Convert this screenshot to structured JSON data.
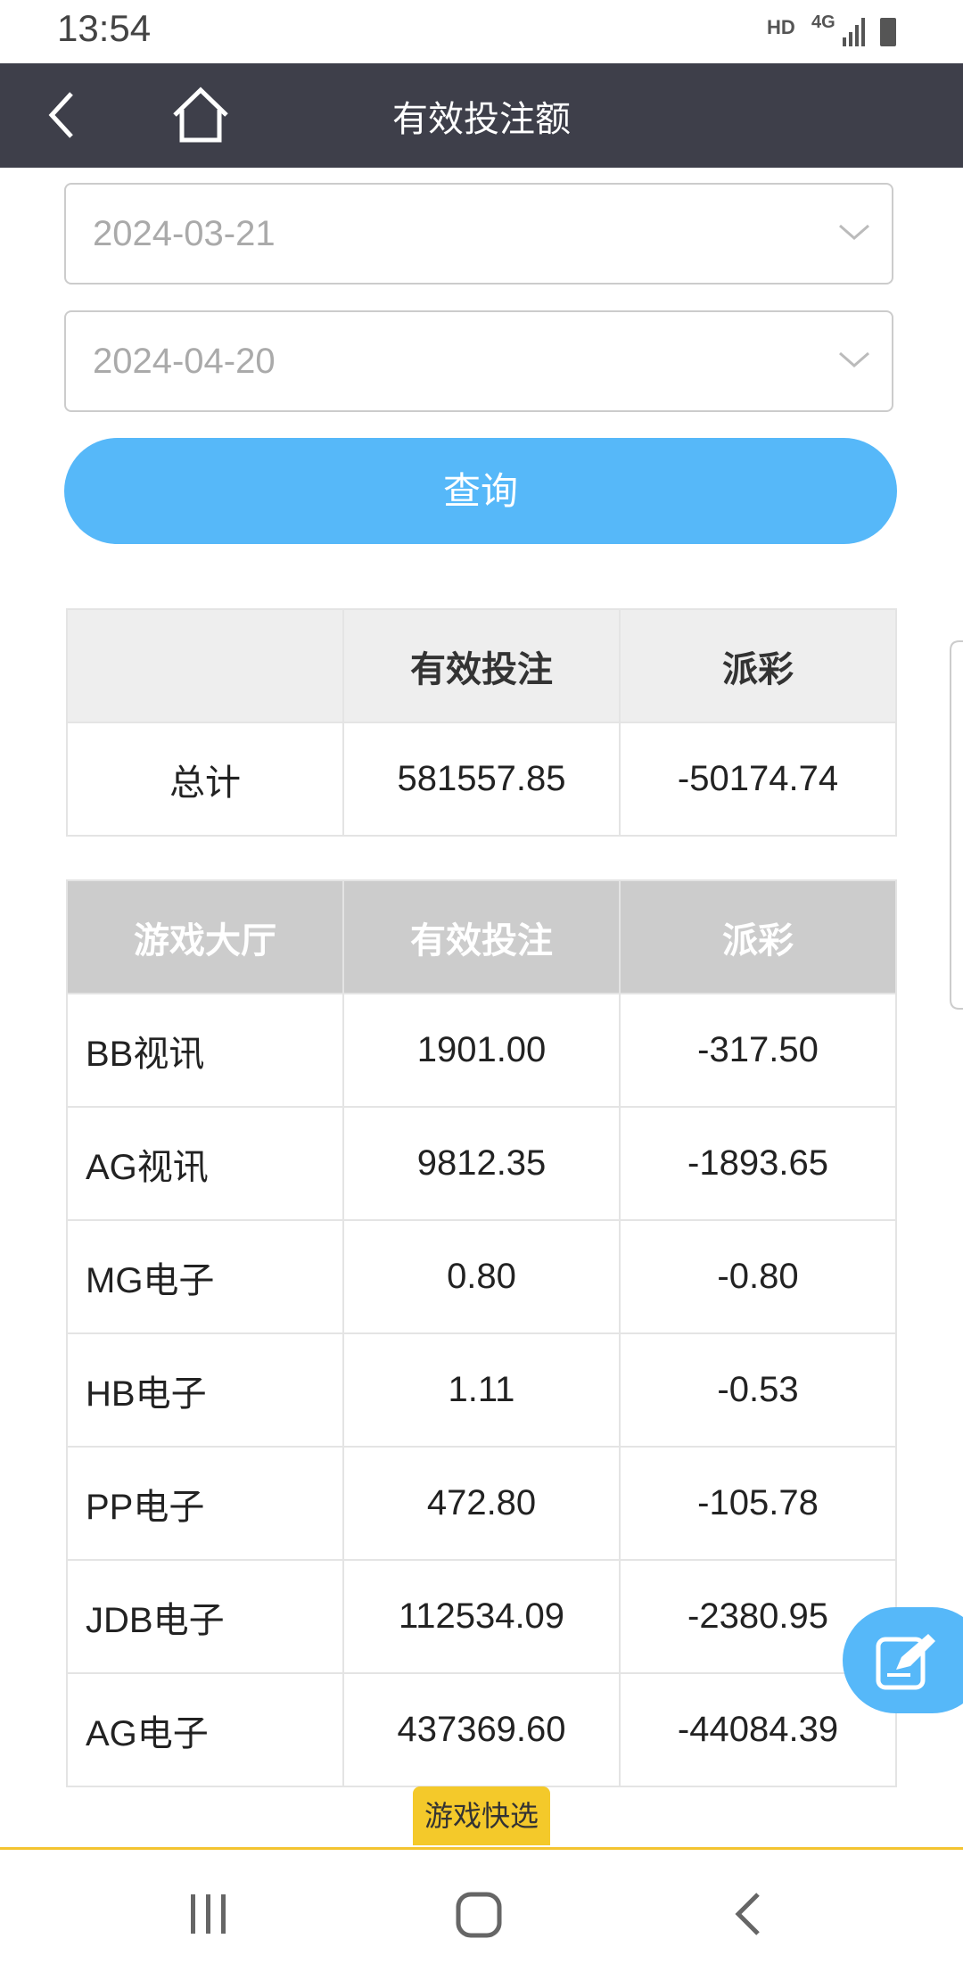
{
  "status_bar": {
    "time": "13:54",
    "network": "HD",
    "signal": "4G"
  },
  "header": {
    "title": "有效投注额"
  },
  "form": {
    "start_date": "2024-03-21",
    "end_date": "2024-04-20",
    "button": "查询"
  },
  "summary_table": {
    "columns": [
      "有效投注",
      "派彩"
    ],
    "rows": [
      [
        "总计",
        "581557.85",
        "-50174.74"
      ]
    ]
  },
  "detail_table": {
    "columns": [
      "游戏大厅",
      "有效投注",
      "派彩"
    ],
    "rows": [
      [
        "BB视讯",
        "1901.00",
        "-317.50"
      ],
      [
        "AG视讯",
        "9812.35",
        "-1893.65"
      ],
      [
        "MG电子",
        "0.80",
        "-0.80"
      ],
      [
        "HB电子",
        "1.11",
        "-0.53"
      ],
      [
        "PP电子",
        "472.80",
        "-105.78"
      ],
      [
        "JDB电子",
        "112534.09",
        "-2380.95"
      ],
      [
        "AG电子",
        "437369.60",
        "-44084.39"
      ]
    ]
  },
  "quick_pick": "游戏快选"
}
